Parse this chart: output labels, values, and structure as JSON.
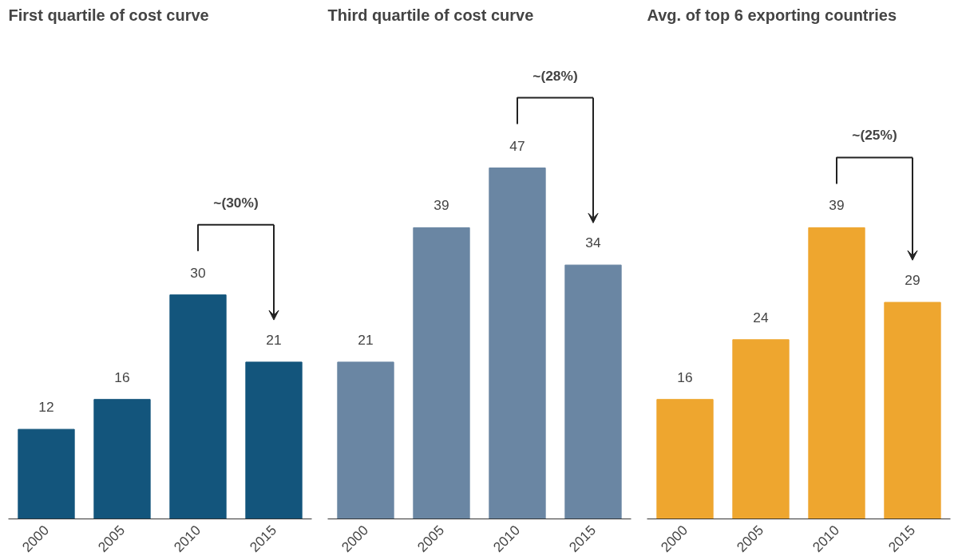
{
  "chart_data": [
    {
      "type": "bar",
      "title": "First quartile of cost curve",
      "categories": [
        "2000",
        "2005",
        "2010",
        "2015"
      ],
      "values": [
        12,
        16,
        30,
        21
      ],
      "color": "#13557c",
      "data_labels": true,
      "grid": false,
      "annotations": [
        "~(30%)"
      ]
    },
    {
      "type": "bar",
      "title": "Third quartile of cost curve",
      "categories": [
        "2000",
        "2005",
        "2010",
        "2015"
      ],
      "values": [
        21,
        39,
        47,
        34
      ],
      "color": "#6a86a3",
      "data_labels": true,
      "grid": false,
      "annotations": [
        "~(28%)"
      ]
    },
    {
      "type": "bar",
      "title": "Avg. of top 6 exporting countries",
      "categories": [
        "2000",
        "2005",
        "2010",
        "2015"
      ],
      "values": [
        16,
        24,
        39,
        29
      ],
      "color": "#eea62f",
      "data_labels": true,
      "grid": false,
      "annotations": [
        "~(25%)"
      ]
    }
  ]
}
